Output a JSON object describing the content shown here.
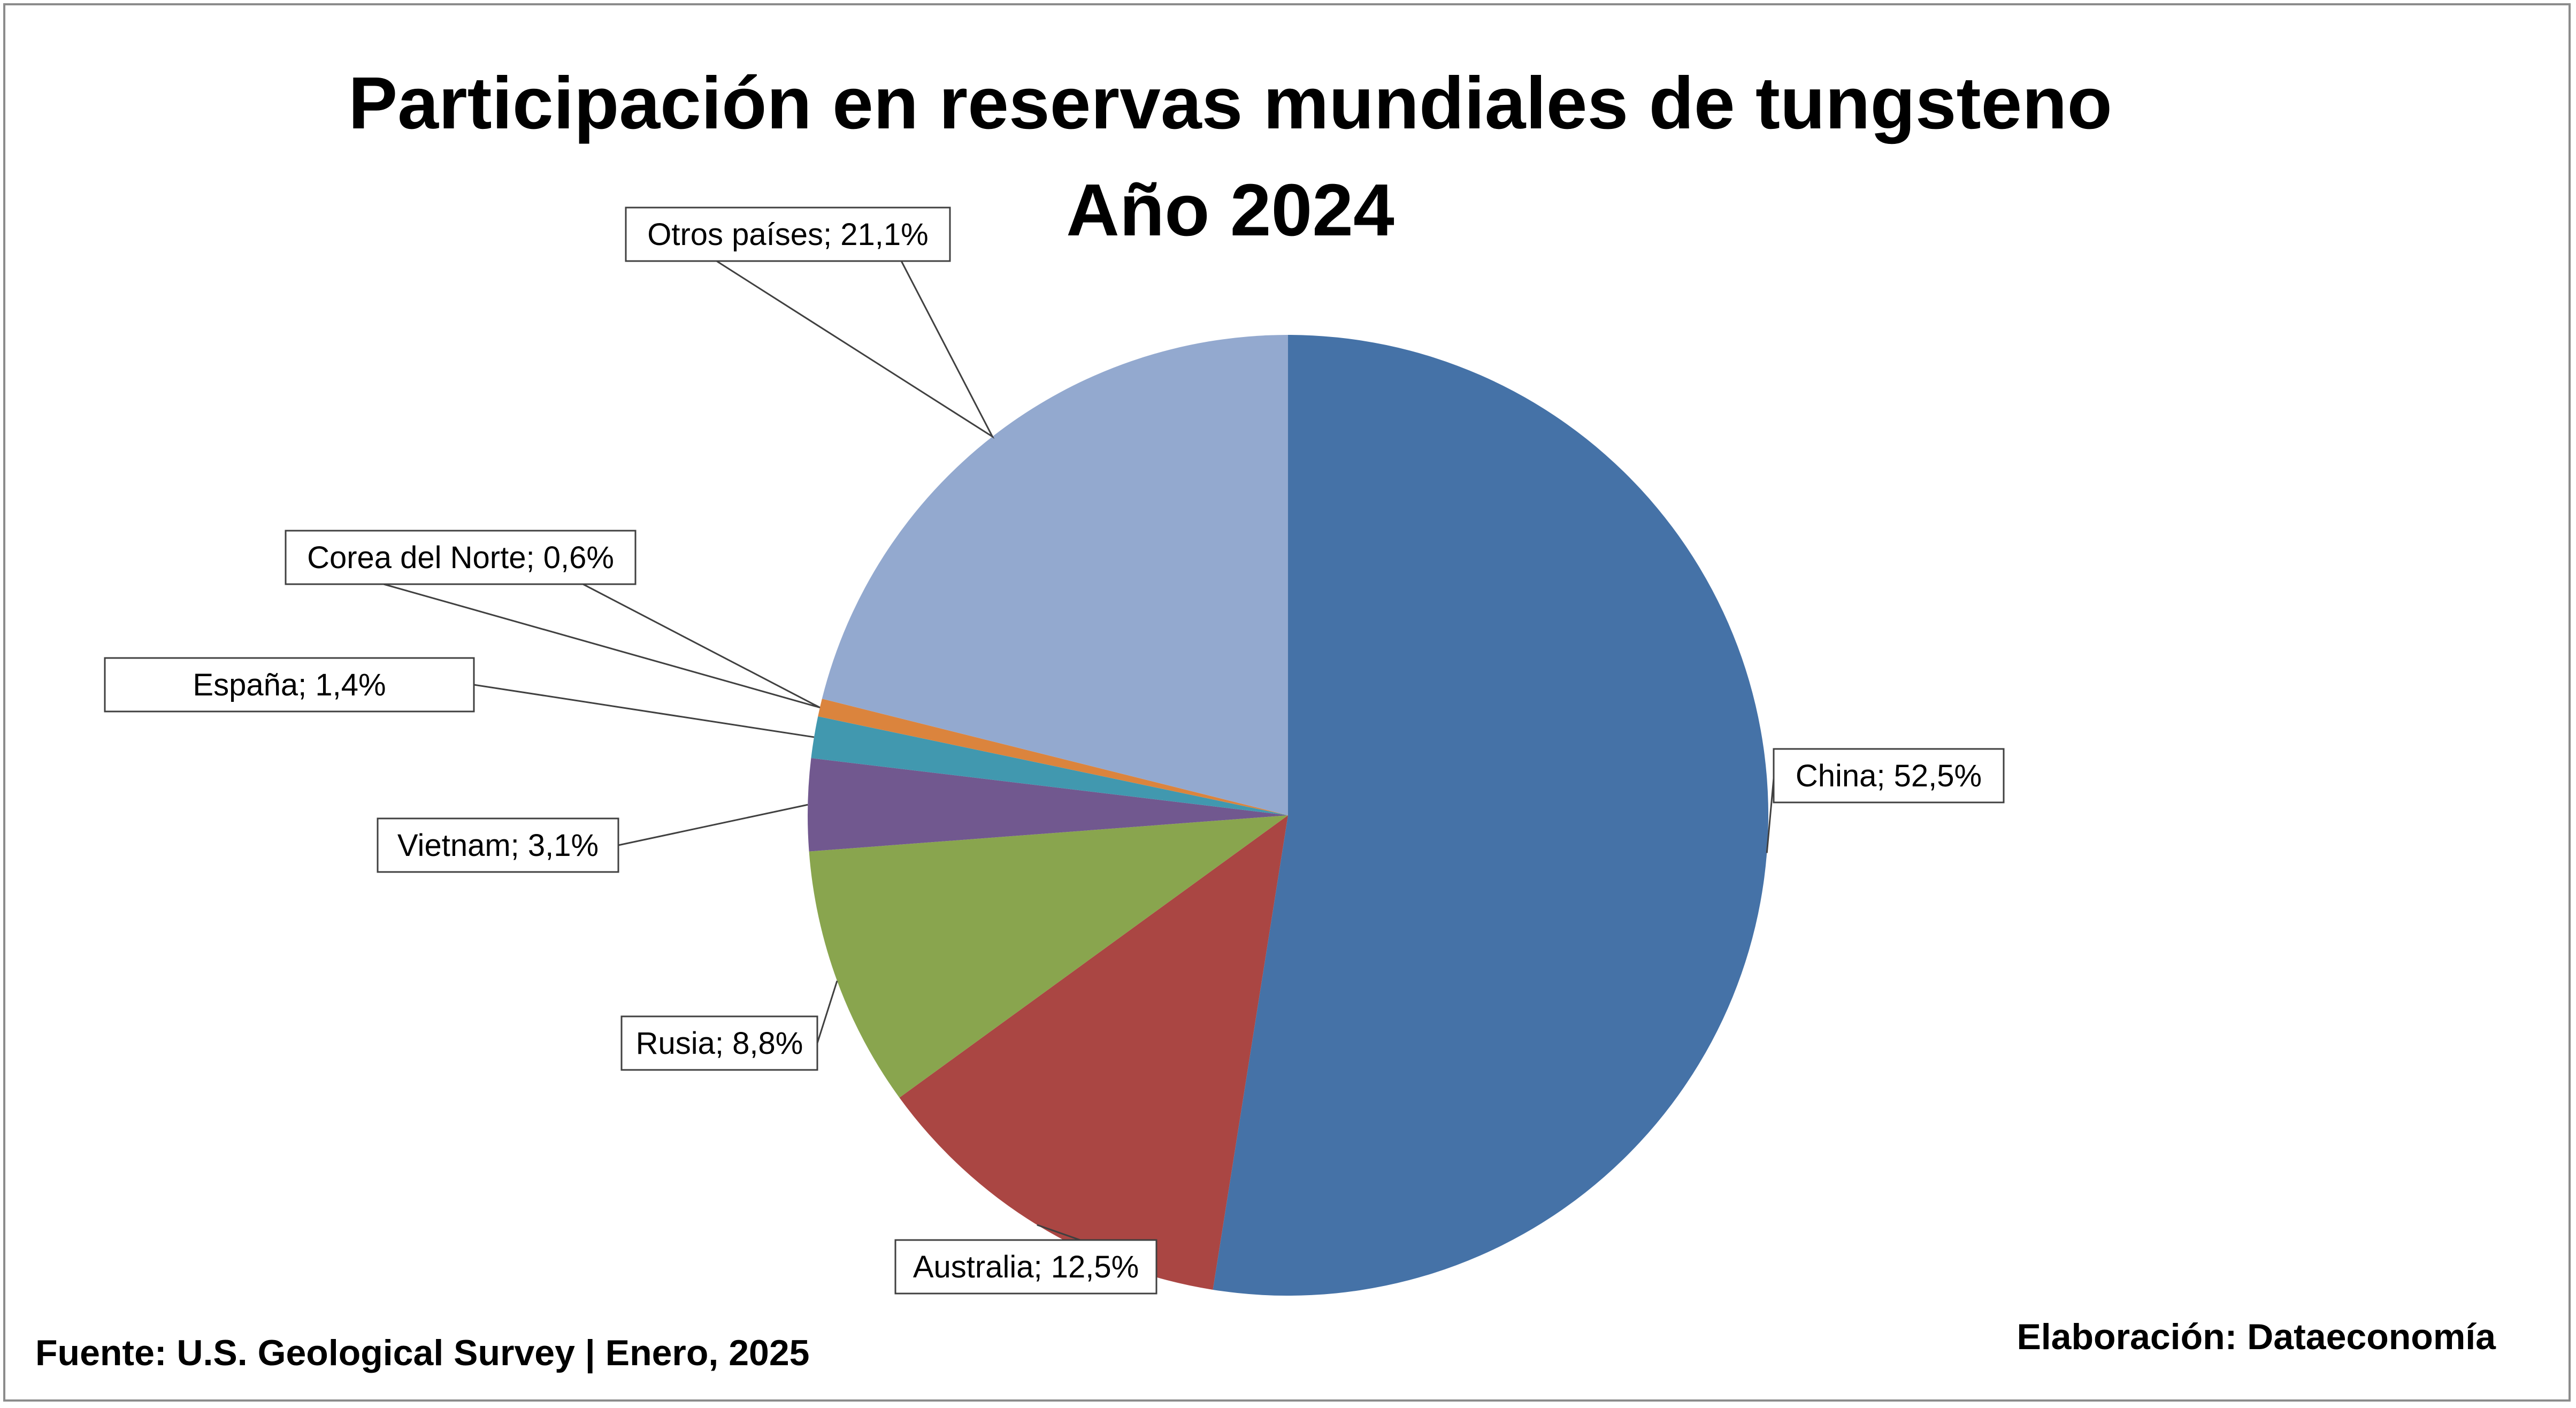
{
  "chart_data": {
    "type": "pie",
    "title": "Participación en reservas mundiales de tungsteno",
    "subtitle": "Año 2024",
    "slices": [
      {
        "name": "China",
        "value": 52.5,
        "label": "China; 52,5%",
        "color": "#4572A7"
      },
      {
        "name": "Australia",
        "value": 12.5,
        "label": "Australia; 12,5%",
        "color": "#AA4643"
      },
      {
        "name": "Rusia",
        "value": 8.8,
        "label": "Rusia; 8,8%",
        "color": "#89A54E"
      },
      {
        "name": "Vietnam",
        "value": 3.1,
        "label": "Vietnam; 3,1%",
        "color": "#71588F"
      },
      {
        "name": "España",
        "value": 1.4,
        "label": "España; 1,4%",
        "color": "#4198AF"
      },
      {
        "name": "Corea del Norte",
        "value": 0.6,
        "label": "Corea del Norte; 0,6%",
        "color": "#DB843D"
      },
      {
        "name": "Otros países",
        "value": 21.1,
        "label": "Otros países; 21,1%",
        "color": "#93A9CF"
      }
    ],
    "start_angle": "12 o'clock",
    "direction": "clockwise",
    "legend": "none"
  },
  "footer": {
    "source": "Fuente: U.S. Geological Survey | Enero, 2025",
    "credit": "Elaboración: Dataeconomía"
  }
}
